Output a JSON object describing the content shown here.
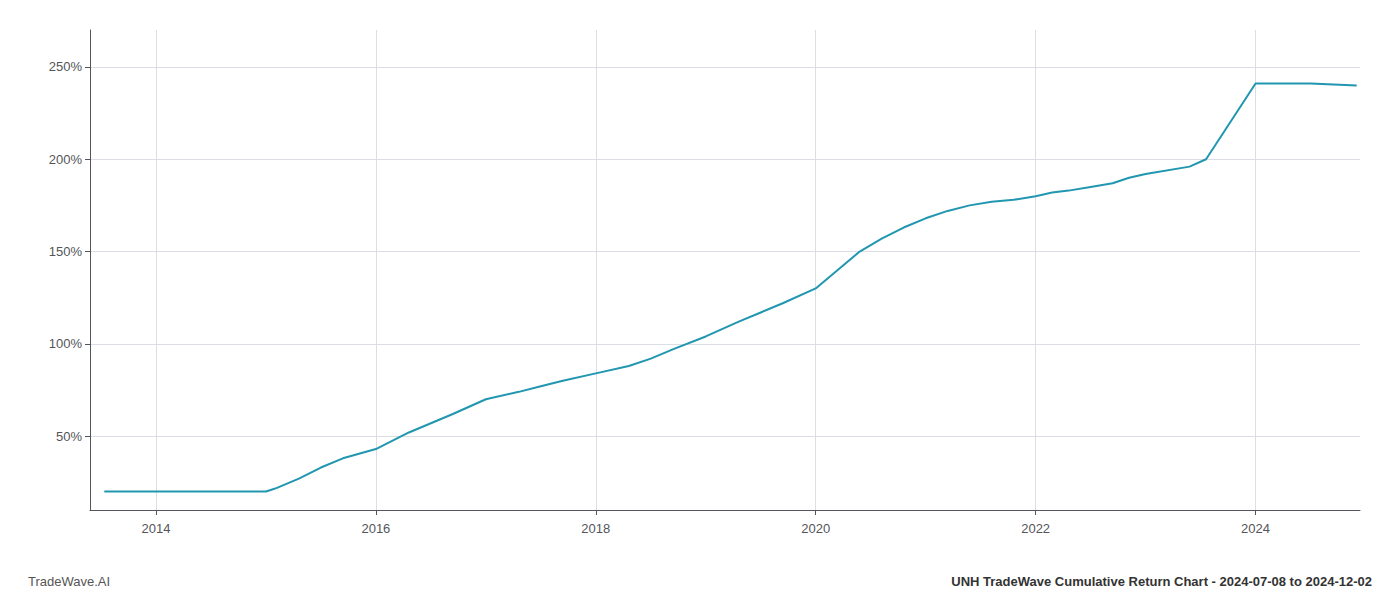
{
  "chart_data": {
    "type": "line",
    "x": [
      2013.53,
      2014.0,
      2014.2,
      2014.5,
      2014.7,
      2015.0,
      2015.05,
      2015.1,
      2015.3,
      2015.5,
      2015.7,
      2016.0,
      2016.3,
      2016.7,
      2017.0,
      2017.3,
      2017.5,
      2017.7,
      2018.0,
      2018.3,
      2018.5,
      2018.7,
      2019.0,
      2019.3,
      2019.5,
      2019.7,
      2020.0,
      2020.2,
      2020.4,
      2020.6,
      2020.8,
      2021.0,
      2021.2,
      2021.4,
      2021.6,
      2021.8,
      2022.0,
      2022.15,
      2022.3,
      2022.5,
      2022.7,
      2022.85,
      2023.0,
      2023.4,
      2023.55,
      2024.0,
      2024.5,
      2024.92
    ],
    "values": [
      20,
      20,
      20,
      20,
      20,
      20,
      21,
      22,
      27,
      33,
      38,
      43,
      52,
      62,
      70,
      74,
      77,
      80,
      84,
      88,
      92,
      97,
      104,
      112,
      117,
      122,
      130,
      140,
      150,
      157,
      163,
      168,
      172,
      175,
      177,
      178,
      180,
      182,
      183,
      185,
      187,
      190,
      192,
      196,
      200,
      241,
      241,
      240
    ],
    "color": "#2196b0",
    "xlim": [
      2013.4,
      2024.95
    ],
    "xticks": [
      2014,
      2016,
      2018,
      2020,
      2022,
      2024
    ],
    "ylim": [
      10,
      270
    ],
    "yticks": [
      {
        "value": 50,
        "label": "50%"
      },
      {
        "value": 100,
        "label": "100%"
      },
      {
        "value": 150,
        "label": "150%"
      },
      {
        "value": 200,
        "label": "200%"
      },
      {
        "value": 250,
        "label": "250%"
      }
    ],
    "grid": true,
    "annotations": [
      "TradeWave.AI",
      "UNH TradeWave Cumulative Return Chart - 2024-07-08 to 2024-12-02"
    ]
  }
}
